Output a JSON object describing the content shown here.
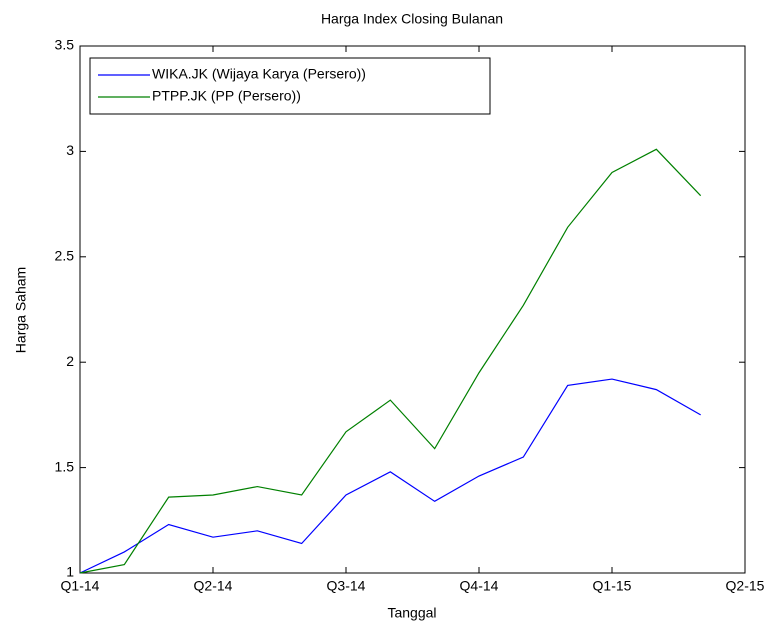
{
  "chart_data": {
    "type": "line",
    "title": "Harga Index Closing Bulanan",
    "xlabel": "Tanggal",
    "ylabel": "Harga Saham",
    "x": [
      0,
      1,
      2,
      3,
      4,
      5,
      6,
      7,
      8,
      9,
      10,
      11,
      12,
      13,
      14
    ],
    "xlim": [
      0,
      15
    ],
    "xticks": [
      {
        "value": 0,
        "label": "Q1-14"
      },
      {
        "value": 3,
        "label": "Q2-14"
      },
      {
        "value": 6,
        "label": "Q3-14"
      },
      {
        "value": 9,
        "label": "Q4-14"
      },
      {
        "value": 12,
        "label": "Q1-15"
      },
      {
        "value": 15,
        "label": "Q2-15"
      }
    ],
    "ylim": [
      1,
      3.5
    ],
    "yticks": [
      1,
      1.5,
      2,
      2.5,
      3,
      3.5
    ],
    "legend": "upper left",
    "series": [
      {
        "name": "WIKA.JK (Wijaya Karya (Persero))",
        "color": "#0000ff",
        "values": [
          1.0,
          1.1,
          1.23,
          1.17,
          1.2,
          1.14,
          1.37,
          1.48,
          1.34,
          1.46,
          1.55,
          1.89,
          1.92,
          1.87,
          1.75
        ]
      },
      {
        "name": "PTPP.JK (PP (Persero))",
        "color": "#008000",
        "values": [
          1.0,
          1.04,
          1.36,
          1.37,
          1.41,
          1.37,
          1.67,
          1.82,
          1.59,
          1.95,
          2.27,
          2.64,
          2.9,
          3.01,
          2.79
        ]
      }
    ]
  }
}
